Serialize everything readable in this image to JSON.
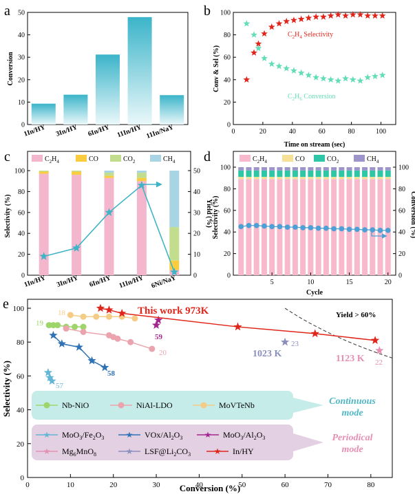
{
  "chart_data": [
    {
      "panel": "a",
      "type": "bar",
      "categories": [
        "1In/HY",
        "3In/HY",
        "6In/HY",
        "11In/HY",
        "11In/NaY"
      ],
      "values": [
        9.3,
        13.3,
        31.2,
        47.9,
        13.1
      ],
      "ylabel": "Conversion",
      "ylim": [
        0,
        50
      ],
      "yticks": [
        0,
        10,
        20,
        30,
        40,
        50
      ],
      "bar_color_top": "#3bb4c9",
      "bar_color_bottom": "#e6f6f9"
    },
    {
      "panel": "b",
      "type": "scatter",
      "xlabel": "Time on stream (sec)",
      "ylabel": "Conv & Sel (%)",
      "xlim": [
        0,
        110
      ],
      "ylim": [
        0,
        100
      ],
      "xticks": [
        0,
        20,
        40,
        60,
        80,
        100
      ],
      "yticks": [
        0,
        20,
        40,
        60,
        80,
        100
      ],
      "series": [
        {
          "name": "C2H4 Selectivity",
          "label_main": "C",
          "label_sub1": "2",
          "label_mid": "H",
          "label_sub2": "4",
          "label_tail": " Selectivity",
          "color": "#e0261b",
          "x": [
            9,
            14,
            17,
            21,
            26,
            31,
            36,
            41,
            46,
            51,
            56,
            61,
            66,
            71,
            76,
            81,
            86,
            91,
            96,
            101
          ],
          "y": [
            40,
            64,
            72,
            81,
            87,
            90,
            92,
            93,
            94,
            95,
            96,
            96,
            97,
            98,
            97,
            98,
            98,
            97,
            97,
            97
          ]
        },
        {
          "name": "C2H6 Conversion",
          "label_main": "C",
          "label_sub1": "2",
          "label_mid": "H",
          "label_sub2": "6",
          "label_tail": " Conversion",
          "color": "#63ddb7",
          "x": [
            9,
            14,
            17,
            21,
            26,
            31,
            36,
            41,
            46,
            51,
            56,
            61,
            66,
            71,
            76,
            81,
            86,
            91,
            96,
            101
          ],
          "y": [
            90,
            80,
            68,
            59,
            54,
            52,
            50,
            48,
            46,
            44,
            42,
            41,
            40,
            39,
            41,
            40,
            39,
            42,
            43,
            44
          ]
        }
      ]
    },
    {
      "panel": "c",
      "type": "bar",
      "stacked": true,
      "categories": [
        "1In/HY",
        "3In/HY",
        "6In/HY",
        "11In/HY",
        "6Ni/NaY"
      ],
      "legend": [
        {
          "name": "C2H4",
          "main": "C",
          "sub1": "2",
          "mid": "H",
          "sub2": "4",
          "color": "#f4b6cc"
        },
        {
          "name": "CO",
          "main": "CO",
          "sub1": "",
          "mid": "",
          "sub2": "",
          "color": "#f9cd3f"
        },
        {
          "name": "CO2",
          "main": "CO",
          "sub1": "2",
          "mid": "",
          "sub2": "",
          "color": "#c3dd8e"
        },
        {
          "name": "CH4",
          "main": "CH",
          "sub1": "4",
          "mid": "",
          "sub2": "",
          "color": "#a9d4e3"
        }
      ],
      "series": [
        {
          "name": "C2H4",
          "values": [
            97,
            96,
            93,
            90,
            5
          ]
        },
        {
          "name": "CO",
          "values": [
            2,
            3,
            2,
            3,
            9
          ]
        },
        {
          "name": "CO2",
          "values": [
            1,
            1,
            3,
            5,
            32
          ]
        },
        {
          "name": "CH4",
          "values": [
            0,
            0,
            2,
            2,
            54
          ]
        }
      ],
      "yield_series": {
        "name": "Yield",
        "values": [
          9,
          13,
          30,
          43,
          1.5
        ],
        "color": "#3fb4c6"
      },
      "ylabel_left": "Selectivity (%)",
      "ylabel_right": "Yield (%)",
      "ylim_left": [
        0,
        100
      ],
      "ylim_right": [
        0,
        50
      ],
      "yticks_left": [
        0,
        20,
        40,
        60,
        80,
        100
      ],
      "yticks_right": [
        0,
        10,
        20,
        30,
        40,
        50
      ]
    },
    {
      "panel": "d",
      "type": "bar",
      "stacked": true,
      "xlabel": "Cycle",
      "ylabel_left": "Selectivity (%)",
      "ylabel_right": "Conversion (%)",
      "xlim": [
        0,
        21
      ],
      "ylim_left": [
        0,
        100
      ],
      "ylim_right": [
        0,
        100
      ],
      "xticks": [
        5,
        10,
        15,
        20
      ],
      "yticks_left": [
        0,
        20,
        40,
        60,
        80,
        100
      ],
      "yticks_right": [
        0,
        20,
        40,
        60,
        80,
        100
      ],
      "cycles": [
        1,
        2,
        3,
        4,
        5,
        6,
        7,
        8,
        9,
        10,
        11,
        12,
        13,
        14,
        15,
        16,
        17,
        18,
        19,
        20
      ],
      "legend": [
        {
          "name": "C2H4",
          "main": "C",
          "sub1": "2",
          "mid": "H",
          "sub2": "4",
          "color": "#f7b9cb"
        },
        {
          "name": "CO",
          "main": "CO",
          "sub1": "",
          "mid": "",
          "sub2": "",
          "color": "#f7e197"
        },
        {
          "name": "CO2",
          "main": "CO",
          "sub1": "2",
          "mid": "",
          "sub2": "",
          "color": "#2ec7a6"
        },
        {
          "name": "CH4",
          "main": "CH",
          "sub1": "4",
          "mid": "",
          "sub2": "",
          "color": "#9d95c9"
        }
      ],
      "stack_values": {
        "C2H4": 89,
        "CO": 2,
        "CO2": 6,
        "CH4": 3
      },
      "conversion": {
        "color": "#4ca0d6",
        "values": [
          45,
          46,
          46,
          45.5,
          45,
          45,
          44.5,
          44.5,
          44,
          44,
          43.5,
          43.5,
          43,
          43,
          42.5,
          42.5,
          42,
          42,
          41.5,
          41.5
        ]
      }
    },
    {
      "panel": "e",
      "type": "scatter",
      "xlabel": "Conversion (%)",
      "ylabel": "Selectivity (%)",
      "xlim": [
        0,
        85
      ],
      "ylim": [
        0,
        100
      ],
      "xticks": [
        0,
        10,
        20,
        30,
        40,
        50,
        60,
        70,
        80
      ],
      "yticks": [
        0,
        20,
        40,
        60,
        80,
        100
      ],
      "yield_threshold": 60,
      "yield_label": "Yield > 60%",
      "series": [
        {
          "name": "Nb-NiO",
          "ref": "19",
          "marker": "circle",
          "color": "#9ed56b",
          "x": [
            5,
            6,
            7,
            9,
            11,
            13
          ],
          "y": [
            90,
            90,
            90,
            89,
            89,
            89
          ]
        },
        {
          "name": "NiAl-LDO",
          "ref": "20",
          "marker": "circle",
          "color": "#eba4ad",
          "x": [
            9,
            13,
            19,
            20,
            21,
            24,
            29
          ],
          "y": [
            88,
            86,
            84,
            83,
            82,
            80,
            76
          ]
        },
        {
          "name": "MoVTeNb",
          "ref": "18",
          "marker": "circle",
          "color": "#f5cc86",
          "x": [
            10,
            13,
            16,
            19,
            22,
            25
          ],
          "y": [
            96,
            95,
            95,
            95,
            95,
            94
          ]
        },
        {
          "name": "MoO3/Fe2O3",
          "ref": "57",
          "marker": "star",
          "color": "#63b6d6",
          "x": [
            4.8,
            5.2,
            5.7
          ],
          "y": [
            62,
            59,
            57
          ]
        },
        {
          "name": "VOx/Al2O3",
          "ref": "58",
          "marker": "star",
          "color": "#2f72b6",
          "x": [
            6,
            8,
            12,
            15,
            18
          ],
          "y": [
            84,
            79,
            77,
            69,
            65
          ]
        },
        {
          "name": "MoO3/Al2O3",
          "ref": "59",
          "marker": "star",
          "color": "#a3268f",
          "x": [
            30,
            30.5
          ],
          "y": [
            90,
            93
          ]
        },
        {
          "name": "Mg6MnO8",
          "ref": "22",
          "marker": "star",
          "color": "#e58fb3",
          "x": [
            82
          ],
          "y": [
            75
          ]
        },
        {
          "name": "LSF@Li2CO3",
          "ref": "23",
          "marker": "star",
          "color": "#8a8fbd",
          "x": [
            60
          ],
          "y": [
            80
          ]
        },
        {
          "name": "In/HY",
          "ref": "",
          "marker": "star",
          "color": "#e0261b",
          "x": [
            17,
            19,
            22,
            49,
            67,
            81
          ],
          "y": [
            100,
            99,
            97,
            89,
            85,
            81
          ]
        }
      ],
      "annotations": {
        "this_work": "This work  973K",
        "k1023": "1023 K",
        "k1123": "1123 K",
        "continuous": "Continuous",
        "continuous2": "mode",
        "periodical": "Periodical",
        "periodical2": "mode"
      },
      "legend_labels": {
        "nbnio": "Nb-NiO",
        "nial": "NiAl-LDO",
        "movtenb": "MoVTeNb",
        "moofe": "MoO3/Fe2O3",
        "vox": "VOx/Al2O3",
        "mooal": "MoO3/Al2O3",
        "mgmn": "Mg6MnO8",
        "lsf": "LSF@Li2CO3",
        "inhy": "In/HY"
      },
      "legend_parts": {
        "moofe_a": "MoO",
        "moofe_b": "3",
        "moofe_c": "/Fe",
        "moofe_d": "2",
        "moofe_e": "O",
        "moofe_f": "3",
        "vox_a": "VOx/Al",
        "vox_b": "2",
        "vox_c": "O",
        "vox_d": "3",
        "mooal_a": "MoO",
        "mooal_b": "3",
        "mooal_c": "/Al",
        "mooal_d": "2",
        "mooal_e": "O",
        "mooal_f": "3",
        "mgmn_a": "Mg",
        "mgmn_b": "6",
        "mgmn_c": "MnO",
        "mgmn_d": "8",
        "lsf_a": "LSF@Li",
        "lsf_b": "2",
        "lsf_c": "CO",
        "lsf_d": "3"
      }
    }
  ],
  "panel_labels": {
    "a": "a",
    "b": "b",
    "c": "c",
    "d": "d",
    "e": "e"
  }
}
